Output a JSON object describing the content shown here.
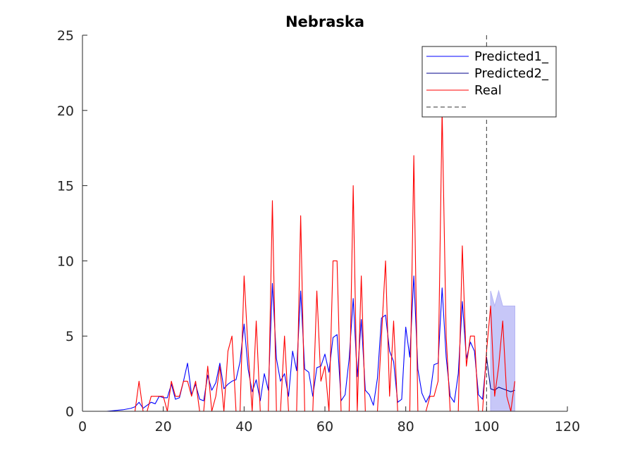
{
  "chart_data": {
    "type": "line",
    "title": "Nebraska",
    "xlabel": "",
    "ylabel": "",
    "xlim": [
      0,
      120
    ],
    "ylim": [
      0,
      25
    ],
    "xticks": [
      0,
      20,
      40,
      60,
      80,
      100,
      120
    ],
    "yticks": [
      0,
      5,
      10,
      15,
      20,
      25
    ],
    "grid": false,
    "legend_position": "top-right",
    "legend": [
      "Predicted1_",
      "Predicted2_",
      "Real",
      ""
    ],
    "vline_x": 100,
    "series": [
      {
        "name": "Predicted1_",
        "color": "#0000ff",
        "x": [
          0,
          2,
          4,
          6,
          8,
          10,
          12,
          13,
          14,
          15,
          16,
          17,
          18,
          19,
          20,
          21,
          22,
          23,
          24,
          25,
          26,
          27,
          28,
          29,
          30,
          31,
          32,
          33,
          34,
          35,
          36,
          37,
          38,
          39,
          40,
          41,
          42,
          43,
          44,
          45,
          46,
          47,
          48,
          49,
          50,
          51,
          52,
          53,
          54,
          55,
          56,
          57,
          58,
          59,
          60,
          61,
          62,
          63,
          64,
          65,
          66,
          67,
          68,
          69,
          70,
          71,
          72,
          73,
          74,
          75,
          76,
          77,
          78,
          79,
          80,
          81,
          82,
          83,
          84,
          85,
          86,
          87,
          88,
          89,
          90,
          91,
          92,
          93,
          94,
          95,
          96,
          97,
          98,
          99,
          100
        ],
        "y": [
          0,
          0,
          0,
          0,
          0.05,
          0.1,
          0.2,
          0.3,
          0.6,
          0.2,
          0.4,
          0.6,
          0.5,
          1.0,
          0.9,
          0.9,
          1.8,
          0.8,
          0.9,
          2.0,
          3.2,
          1.1,
          1.8,
          0.8,
          0.7,
          2.4,
          1.4,
          1.9,
          3.2,
          1.5,
          1.8,
          2.0,
          2.1,
          3.3,
          5.8,
          2.8,
          1.3,
          2.1,
          0.7,
          2.5,
          1.4,
          8.5,
          3.5,
          2.0,
          2.5,
          1.0,
          4.0,
          2.7,
          8.0,
          2.8,
          2.6,
          1.0,
          2.9,
          3.0,
          3.8,
          2.6,
          4.9,
          5.1,
          0.7,
          1.1,
          3.5,
          7.5,
          2.3,
          6.1,
          1.4,
          1.1,
          0.4,
          2.2,
          6.2,
          6.4,
          4.0,
          3.3,
          0.6,
          0.8,
          5.6,
          3.6,
          9.0,
          2.8,
          1.2,
          0.6,
          1.1,
          3.1,
          3.2,
          8.2,
          3.6,
          1.0,
          0.6,
          2.5,
          7.3,
          3.5,
          4.6,
          4.0,
          1.1,
          0.8,
          3.6
        ]
      },
      {
        "name": "Predicted2_",
        "color": "#00008b",
        "x": [
          100,
          101,
          102,
          103,
          104,
          105,
          106,
          107
        ],
        "y": [
          3.6,
          1.5,
          1.4,
          1.6,
          1.5,
          1.4,
          1.3,
          1.4
        ]
      },
      {
        "name": "Real",
        "color": "#ff0000",
        "x": [
          0,
          13,
          14,
          15,
          16,
          17,
          18,
          19,
          20,
          21,
          22,
          23,
          24,
          25,
          26,
          27,
          28,
          29,
          30,
          31,
          32,
          33,
          34,
          35,
          36,
          37,
          38,
          39,
          40,
          41,
          42,
          43,
          44,
          45,
          46,
          47,
          48,
          49,
          50,
          51,
          52,
          53,
          54,
          55,
          56,
          57,
          58,
          59,
          60,
          61,
          62,
          63,
          64,
          65,
          66,
          67,
          68,
          69,
          70,
          71,
          72,
          73,
          74,
          75,
          76,
          77,
          78,
          79,
          80,
          81,
          82,
          83,
          84,
          85,
          86,
          87,
          88,
          89,
          90,
          91,
          92,
          93,
          94,
          95,
          96,
          97,
          98,
          99,
          100,
          101,
          102,
          103,
          104,
          105,
          106,
          107
        ],
        "y": [
          0,
          0,
          2,
          0,
          0,
          1,
          1,
          1,
          1,
          0,
          2,
          1,
          1,
          2,
          2,
          1,
          2,
          0,
          0,
          3,
          0,
          1,
          3,
          0,
          4,
          5,
          0,
          0,
          9,
          4,
          0,
          6,
          0,
          0,
          0,
          14,
          0,
          0,
          5,
          0,
          0,
          0,
          13,
          0,
          0,
          0,
          8,
          2,
          3,
          0,
          10,
          10,
          0,
          0,
          0,
          15,
          0,
          9,
          0,
          0,
          0,
          0,
          5,
          10,
          1,
          6,
          0,
          0,
          0,
          0,
          17,
          0,
          0,
          0,
          1,
          1,
          2,
          20,
          5,
          0,
          0,
          0,
          11,
          3,
          5,
          5,
          0,
          0,
          4,
          7,
          1,
          3,
          6,
          1,
          0,
          2
        ]
      }
    ],
    "confidence_band": {
      "color": "#b4b4f5",
      "x": [
        101,
        102,
        103,
        104,
        105,
        106,
        107
      ],
      "upper": [
        8,
        7,
        8,
        7,
        7,
        7,
        7
      ],
      "lower": [
        0,
        0,
        0,
        0,
        0,
        0,
        0
      ]
    }
  }
}
